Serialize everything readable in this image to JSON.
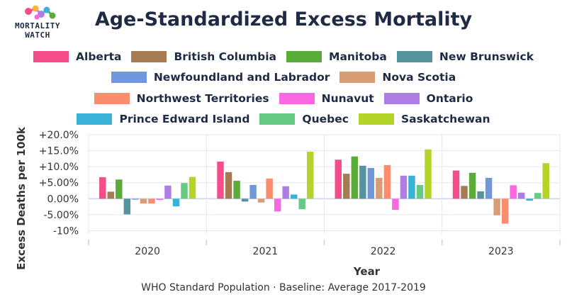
{
  "logo": {
    "line1": "MORTALITY",
    "line2": "WATCH"
  },
  "colors": {
    "Alberta": "#f44d8a",
    "British Columbia": "#a57c52",
    "Manitoba": "#5aab3a",
    "New Brunswick": "#55939f",
    "Newfoundland and Labrador": "#7197db",
    "Nova Scotia": "#d89d74",
    "Northwest Territories": "#fc8c6e",
    "Nunavut": "#f967e1",
    "Ontario": "#b07de4",
    "Prince Edward Island": "#3ab1d6",
    "Quebec": "#68c985",
    "Saskatchewan": "#b5d42a"
  },
  "chart_data": {
    "type": "bar",
    "title": "Age-Standardized Excess Mortality",
    "xlabel": "Year",
    "ylabel": "Excess Deaths per 100k",
    "caption": "WHO Standard Population · Baseline: Average 2017-2019",
    "categories": [
      "2020",
      "2021",
      "2022",
      "2023"
    ],
    "ylim": [
      -11,
      20
    ],
    "yticks": [
      -10,
      -5,
      0,
      5,
      10,
      15,
      20
    ],
    "ytick_labels": [
      "-10%",
      "-5.00%",
      "0.00%",
      "+5.00%",
      "+10.0%",
      "+15.0%",
      "+20.0%"
    ],
    "legend_rows": [
      [
        "Alberta",
        "British Columbia",
        "Manitoba",
        "New Brunswick"
      ],
      [
        "Newfoundland and Labrador",
        "Nova Scotia"
      ],
      [
        "Northwest Territories",
        "Nunavut",
        "Ontario"
      ],
      [
        "Prince Edward Island",
        "Quebec",
        "Saskatchewan"
      ]
    ],
    "series": [
      {
        "name": "Alberta",
        "values": [
          6.7,
          11.6,
          12.2,
          8.8
        ]
      },
      {
        "name": "British Columbia",
        "values": [
          2.2,
          8.3,
          7.8,
          4.0
        ]
      },
      {
        "name": "Manitoba",
        "values": [
          6.0,
          5.6,
          13.2,
          8.1
        ]
      },
      {
        "name": "New Brunswick",
        "values": [
          -4.9,
          -0.9,
          10.3,
          2.3
        ]
      },
      {
        "name": "Newfoundland and Labrador",
        "values": [
          -0.3,
          4.3,
          9.6,
          6.5
        ]
      },
      {
        "name": "Nova Scotia",
        "values": [
          -1.5,
          -1.2,
          6.5,
          -5.2
        ]
      },
      {
        "name": "Northwest Territories",
        "values": [
          -1.5,
          6.3,
          10.5,
          -7.8
        ]
      },
      {
        "name": "Nunavut",
        "values": [
          -0.4,
          -4.0,
          -3.5,
          4.2
        ]
      },
      {
        "name": "Ontario",
        "values": [
          4.1,
          3.9,
          7.2,
          1.9
        ]
      },
      {
        "name": "Prince Edward Island",
        "values": [
          -2.4,
          1.3,
          7.2,
          -0.6
        ]
      },
      {
        "name": "Quebec",
        "values": [
          4.9,
          -3.3,
          4.3,
          1.8
        ]
      },
      {
        "name": "Saskatchewan",
        "values": [
          6.8,
          14.7,
          15.4,
          11.1
        ]
      }
    ]
  }
}
